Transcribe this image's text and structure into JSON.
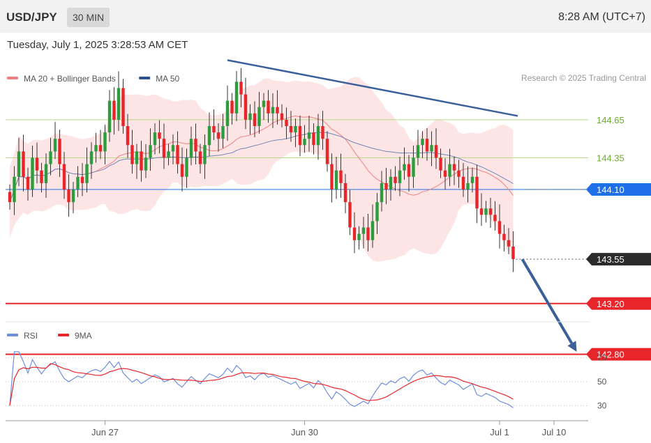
{
  "header": {
    "symbol": "USD/JPY",
    "timeframe": "30 MIN",
    "clock": "8:28 AM (UTC+7)"
  },
  "datetime": "Tuesday, July 1, 2025 3:28:53 AM CET",
  "colors": {
    "bull": "#2e9c3e",
    "bear": "#e8262a",
    "ma20": "#f08080",
    "ma50": "#6f86b5",
    "band": "#fde0e0",
    "trendline": "#3a5f9a",
    "support": "#e8262a",
    "pivot": "#1f6fe8",
    "last": "#2b2b2b",
    "resistance_soft": "#b7d98a",
    "rsi": "#6f8fdc",
    "rsi_ma": "#e8262a"
  },
  "chart_data": [
    {
      "type": "candlestick",
      "title": "",
      "legend": [
        {
          "name": "MA 20 + Bollinger Bands",
          "color": "#f08080"
        },
        {
          "name": "MA 50",
          "color": "#2f4f8f"
        }
      ],
      "credit": "Research © 2025 Trading Central",
      "x_ticks": [
        {
          "label": "Jun 27",
          "i": 21
        },
        {
          "label": "Jun 30",
          "i": 65
        },
        {
          "label": "Jul 1",
          "i": 108
        },
        {
          "label": "Jul 10",
          "i": 120
        }
      ],
      "ylim": [
        142.8,
        145.2
      ],
      "levels": [
        {
          "value": 144.65,
          "label": "144.65",
          "style": "green"
        },
        {
          "value": 144.35,
          "label": "144.35",
          "style": "green"
        },
        {
          "value": 144.1,
          "label": "144.10",
          "style": "pivot"
        },
        {
          "value": 143.55,
          "label": "143.55",
          "style": "last"
        },
        {
          "value": 143.2,
          "label": "143.20",
          "style": "support"
        },
        {
          "value": 142.8,
          "label": "142.80",
          "style": "support"
        }
      ],
      "trendline": {
        "from": {
          "i": 48,
          "price": 145.12
        },
        "to": {
          "i": 112,
          "price": 144.68
        }
      },
      "forecast_arrow": {
        "from": {
          "i": 113,
          "price": 143.55
        },
        "to": {
          "i": 125,
          "price": 142.82
        }
      },
      "closes": [
        144.0,
        144.2,
        144.4,
        144.2,
        144.1,
        144.35,
        144.25,
        144.15,
        144.3,
        144.4,
        144.5,
        144.3,
        144.1,
        144.0,
        144.1,
        144.2,
        144.15,
        144.3,
        144.4,
        144.45,
        144.4,
        144.55,
        144.8,
        144.65,
        144.9,
        144.6,
        144.45,
        144.3,
        144.4,
        144.25,
        144.35,
        144.45,
        144.55,
        144.5,
        144.35,
        144.4,
        144.45,
        144.3,
        144.2,
        144.35,
        144.5,
        144.4,
        144.3,
        144.45,
        144.6,
        144.55,
        144.5,
        144.6,
        144.8,
        144.7,
        144.95,
        144.85,
        144.65,
        144.7,
        144.6,
        144.75,
        144.8,
        144.7,
        144.75,
        144.7,
        144.65,
        144.6,
        144.55,
        144.6,
        144.45,
        144.5,
        144.55,
        144.45,
        144.6,
        144.5,
        144.3,
        144.1,
        144.25,
        144.15,
        144.0,
        143.8,
        143.7,
        143.75,
        143.8,
        143.7,
        143.85,
        144.0,
        144.15,
        144.1,
        144.2,
        144.15,
        144.25,
        144.3,
        144.2,
        144.35,
        144.45,
        144.5,
        144.4,
        144.45,
        144.35,
        144.25,
        144.2,
        144.3,
        144.25,
        144.2,
        144.1,
        144.15,
        144.2,
        143.95,
        143.9,
        143.95,
        143.9,
        143.85,
        143.75,
        143.7,
        143.65,
        143.55
      ],
      "rsi_ticks": [
        70,
        50,
        30
      ],
      "rsi_legend": [
        {
          "name": "RSI",
          "color": "#6f8fdc"
        },
        {
          "name": "9MA",
          "color": "#e8262a"
        }
      ]
    }
  ]
}
